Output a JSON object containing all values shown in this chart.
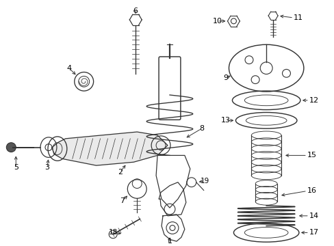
{
  "bg_color": "#ffffff",
  "line_color": "#333333",
  "text_color": "#000000",
  "fig_width": 4.89,
  "fig_height": 3.6,
  "dpi": 100
}
